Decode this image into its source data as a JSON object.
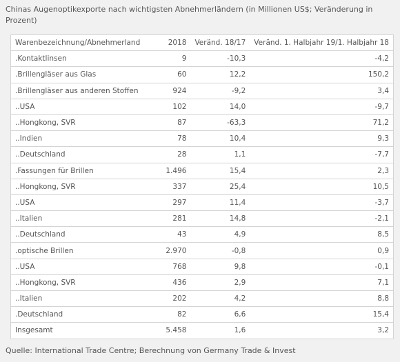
{
  "title": "Chinas Augenoptikexporte nach wichtigsten Abnehmerländern (in Millionen US$; Veränderung in Prozent)",
  "table": {
    "header": [
      "Warenbezeichnung/Abnehmerland",
      "2018",
      "Veränd. 18/17",
      "Veränd. 1. Halbjahr 19/1. Halbjahr 18"
    ],
    "rows": [
      [
        ".Kontaktlinsen",
        "9",
        "-10,3",
        "-4,2"
      ],
      [
        ".Brillengläser aus Glas",
        "60",
        "12,2",
        "150,2"
      ],
      [
        ".Brillengläser aus anderen Stoffen",
        "924",
        "-9,2",
        "3,4"
      ],
      [
        "..USA",
        "102",
        "14,0",
        "-9,7"
      ],
      [
        "..Hongkong, SVR",
        "87",
        "-63,3",
        "71,2"
      ],
      [
        "..Indien",
        "78",
        "10,4",
        "9,3"
      ],
      [
        "..Deutschland",
        "28",
        "1,1",
        "-7,7"
      ],
      [
        ".Fassungen für Brillen",
        "1.496",
        "15,4",
        "2,3"
      ],
      [
        "..Hongkong, SVR",
        "337",
        "25,4",
        "10,5"
      ],
      [
        "..USA",
        "297",
        "11,4",
        "-3,7"
      ],
      [
        "..Italien",
        "281",
        "14,8",
        "-2,1"
      ],
      [
        "..Deutschland",
        "43",
        "4,9",
        "8,5"
      ],
      [
        ".optische Brillen",
        "2.970",
        "-0,8",
        "0,9"
      ],
      [
        "..USA",
        "768",
        "9,8",
        "-0,1"
      ],
      [
        "..Hongkong, SVR",
        "436",
        "2,9",
        "7,1"
      ],
      [
        "..Italien",
        "202",
        "4,2",
        "8,8"
      ],
      [
        ".Deutschland",
        "82",
        "6,6",
        "15,4"
      ],
      [
        "Insgesamt",
        "5.458",
        "1,6",
        "3,2"
      ]
    ]
  },
  "source": "Quelle: International Trade Centre; Berechnung von Germany Trade & Invest"
}
